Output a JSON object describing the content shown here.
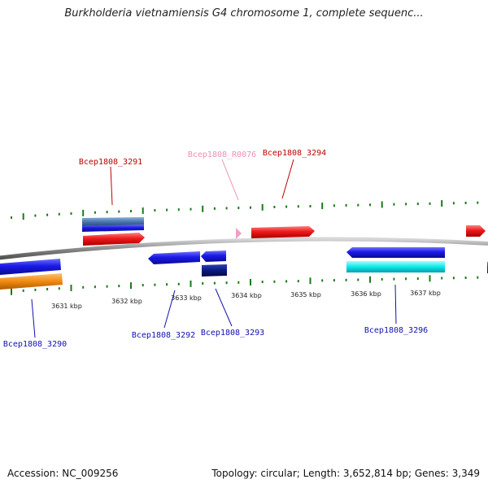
{
  "header": {
    "title": "Burkholderia vietnamiensis G4 chromosome 1, complete sequenc..."
  },
  "footer": {
    "accession": "Accession: NC_009256",
    "summary": "Topology: circular; Length: 3,652,814 bp; Genes: 3,349"
  },
  "colors": {
    "backbone": "#8c8c8c",
    "tick": "#1a7a1a",
    "forward_gene": "#e02020",
    "reverse_gene": "#1a1ae0",
    "cds_forward": "#4a7ab0",
    "cds_reverse_light": "#00e0e0",
    "cds_reverse_dark": "#0a1a80",
    "orange_feature": "#f08a10",
    "rna_gene": "#f0a0c8",
    "label_forward": "#c00000",
    "label_reverse": "#1010b0",
    "label_rna": "#f090b0"
  },
  "chart_data": {
    "type": "genome-map",
    "topology": "circular",
    "units": "kbp",
    "tick_labels": [
      "3631 kbp",
      "3632 kbp",
      "3633 kbp",
      "3634 kbp",
      "3635 kbp",
      "3636 kbp",
      "3637 kbp"
    ],
    "gene_labels": [
      {
        "name": "Bcep1808_3290",
        "strand": "reverse"
      },
      {
        "name": "Bcep1808_3291",
        "strand": "forward"
      },
      {
        "name": "Bcep1808_R0076",
        "strand": "forward",
        "kind": "rna"
      },
      {
        "name": "Bcep1808_3292",
        "strand": "reverse"
      },
      {
        "name": "Bcep1808_3293",
        "strand": "reverse"
      },
      {
        "name": "Bcep1808_3294",
        "strand": "forward"
      },
      {
        "name": "Bcep1808_3296",
        "strand": "reverse"
      }
    ]
  }
}
